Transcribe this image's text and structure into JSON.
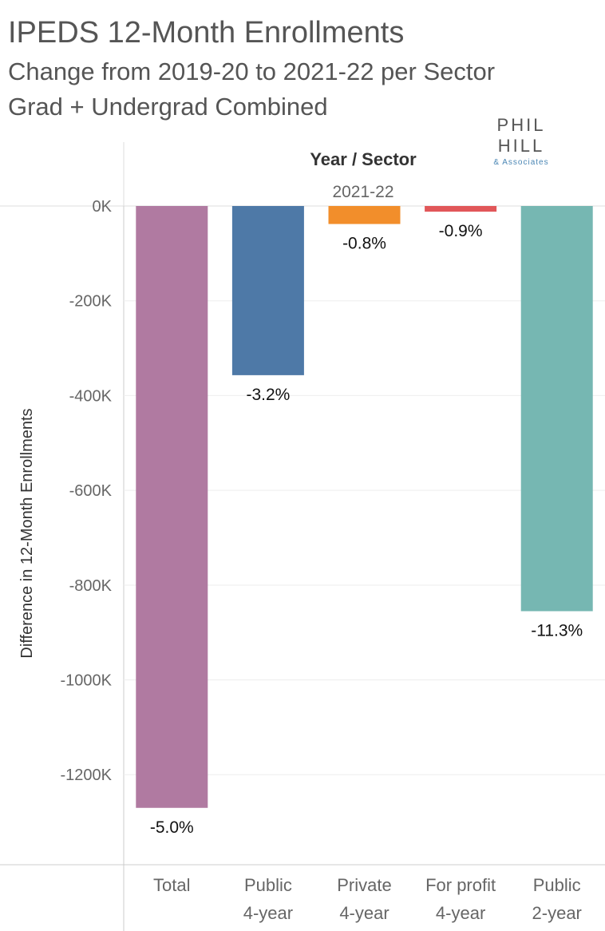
{
  "header": {
    "title": "IPEDS 12-Month Enrollments",
    "subtitle": "Change from 2019-20 to 2021-22 per Sector",
    "subtitle2": "Grad + Undergrad Combined"
  },
  "logo": {
    "main": "PHIL HILL",
    "sub": "& Associates"
  },
  "chart_data": {
    "type": "bar",
    "column_header": "Year / Sector",
    "year": "2021-22",
    "ylabel": "Difference in 12-Month Enrollments",
    "ylim": [
      -1390,
      0
    ],
    "yticks": [
      0,
      -200,
      -400,
      -600,
      -800,
      -1000,
      -1200
    ],
    "ytick_labels": [
      "0K",
      "-200K",
      "-400K",
      "-600K",
      "-800K",
      "-1000K",
      "-1200K"
    ],
    "categories": [
      [
        "Total"
      ],
      [
        "Public",
        "4-year"
      ],
      [
        "Private",
        "4-year"
      ],
      [
        "For profit",
        "4-year"
      ],
      [
        "Public",
        "2-year"
      ]
    ],
    "values": [
      -1270,
      -357,
      -38,
      -12,
      -855
    ],
    "value_units": "thousands",
    "data_labels": [
      "-5.0%",
      "-3.2%",
      "-0.8%",
      "-0.9%",
      "-11.3%"
    ],
    "colors": [
      "#b07aa1",
      "#4e79a7",
      "#f28e2b",
      "#e15759",
      "#76b7b2"
    ]
  }
}
